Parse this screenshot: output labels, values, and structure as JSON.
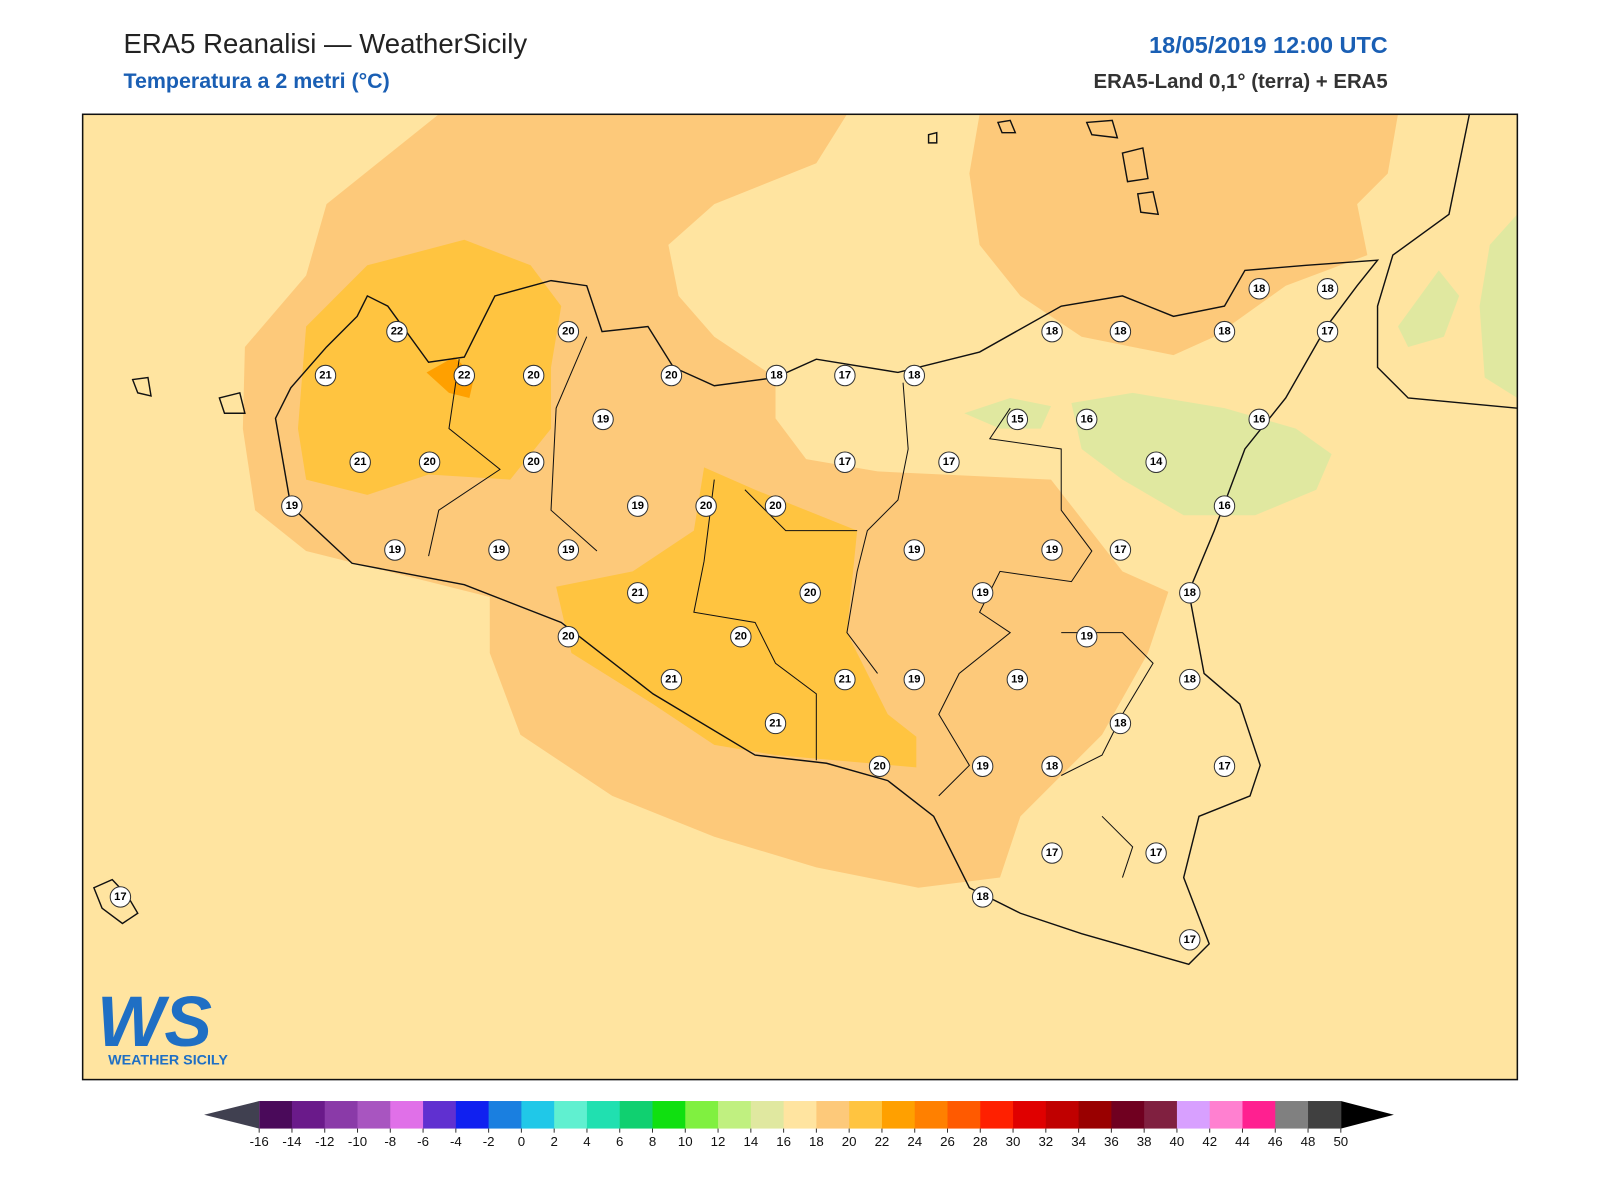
{
  "header": {
    "title": "ERA5 Reanalisi — WeatherSicily",
    "subtitle": "Temperatura a 2 metri (°C)",
    "datetime": "18/05/2019 12:00 UTC",
    "source": "ERA5-Land 0,1° (terra) + ERA5"
  },
  "stations": [
    22,
    21,
    22,
    20,
    20,
    20,
    18,
    17,
    18,
    18,
    18,
    18,
    18,
    18,
    17,
    19,
    15,
    16,
    16,
    21,
    20,
    20,
    17,
    17,
    14,
    19,
    19,
    20,
    20,
    16,
    19,
    19,
    19,
    19,
    19,
    17,
    21,
    20,
    19,
    18,
    20,
    20,
    19,
    21,
    21,
    19,
    19,
    18,
    21,
    18,
    20,
    19,
    18,
    17,
    17,
    17,
    17,
    18,
    17
  ],
  "logo": {
    "mark": "WS",
    "text": "WEATHER SICILY"
  },
  "colorbar": {
    "ticks": [
      -16,
      -14,
      -12,
      -10,
      -8,
      -6,
      -4,
      -2,
      0,
      2,
      4,
      6,
      8,
      10,
      12,
      14,
      16,
      18,
      20,
      22,
      24,
      26,
      28,
      30,
      32,
      34,
      36,
      38,
      40,
      42,
      44,
      46,
      48,
      50
    ],
    "colors": [
      "#4a0a5a",
      "#6a1a8a",
      "#8a3aa8",
      "#a855c0",
      "#e070e8",
      "#6030d0",
      "#1020f0",
      "#1a7fe0",
      "#20c8e8",
      "#60f0d0",
      "#20e0b0",
      "#10d070",
      "#10e010",
      "#80f040",
      "#c0f080",
      "#e0e8a0",
      "#ffe4a0",
      "#fdc97a",
      "#ffc440",
      "#ffa000",
      "#ff8000",
      "#ff5a00",
      "#ff2000",
      "#e00000",
      "#c00000",
      "#990000",
      "#700020",
      "#802040",
      "#d8a0ff",
      "#ff80d0",
      "#ff2090",
      "#808080",
      "#404040"
    ],
    "under_color": "#404050",
    "over_color": "#000000"
  }
}
